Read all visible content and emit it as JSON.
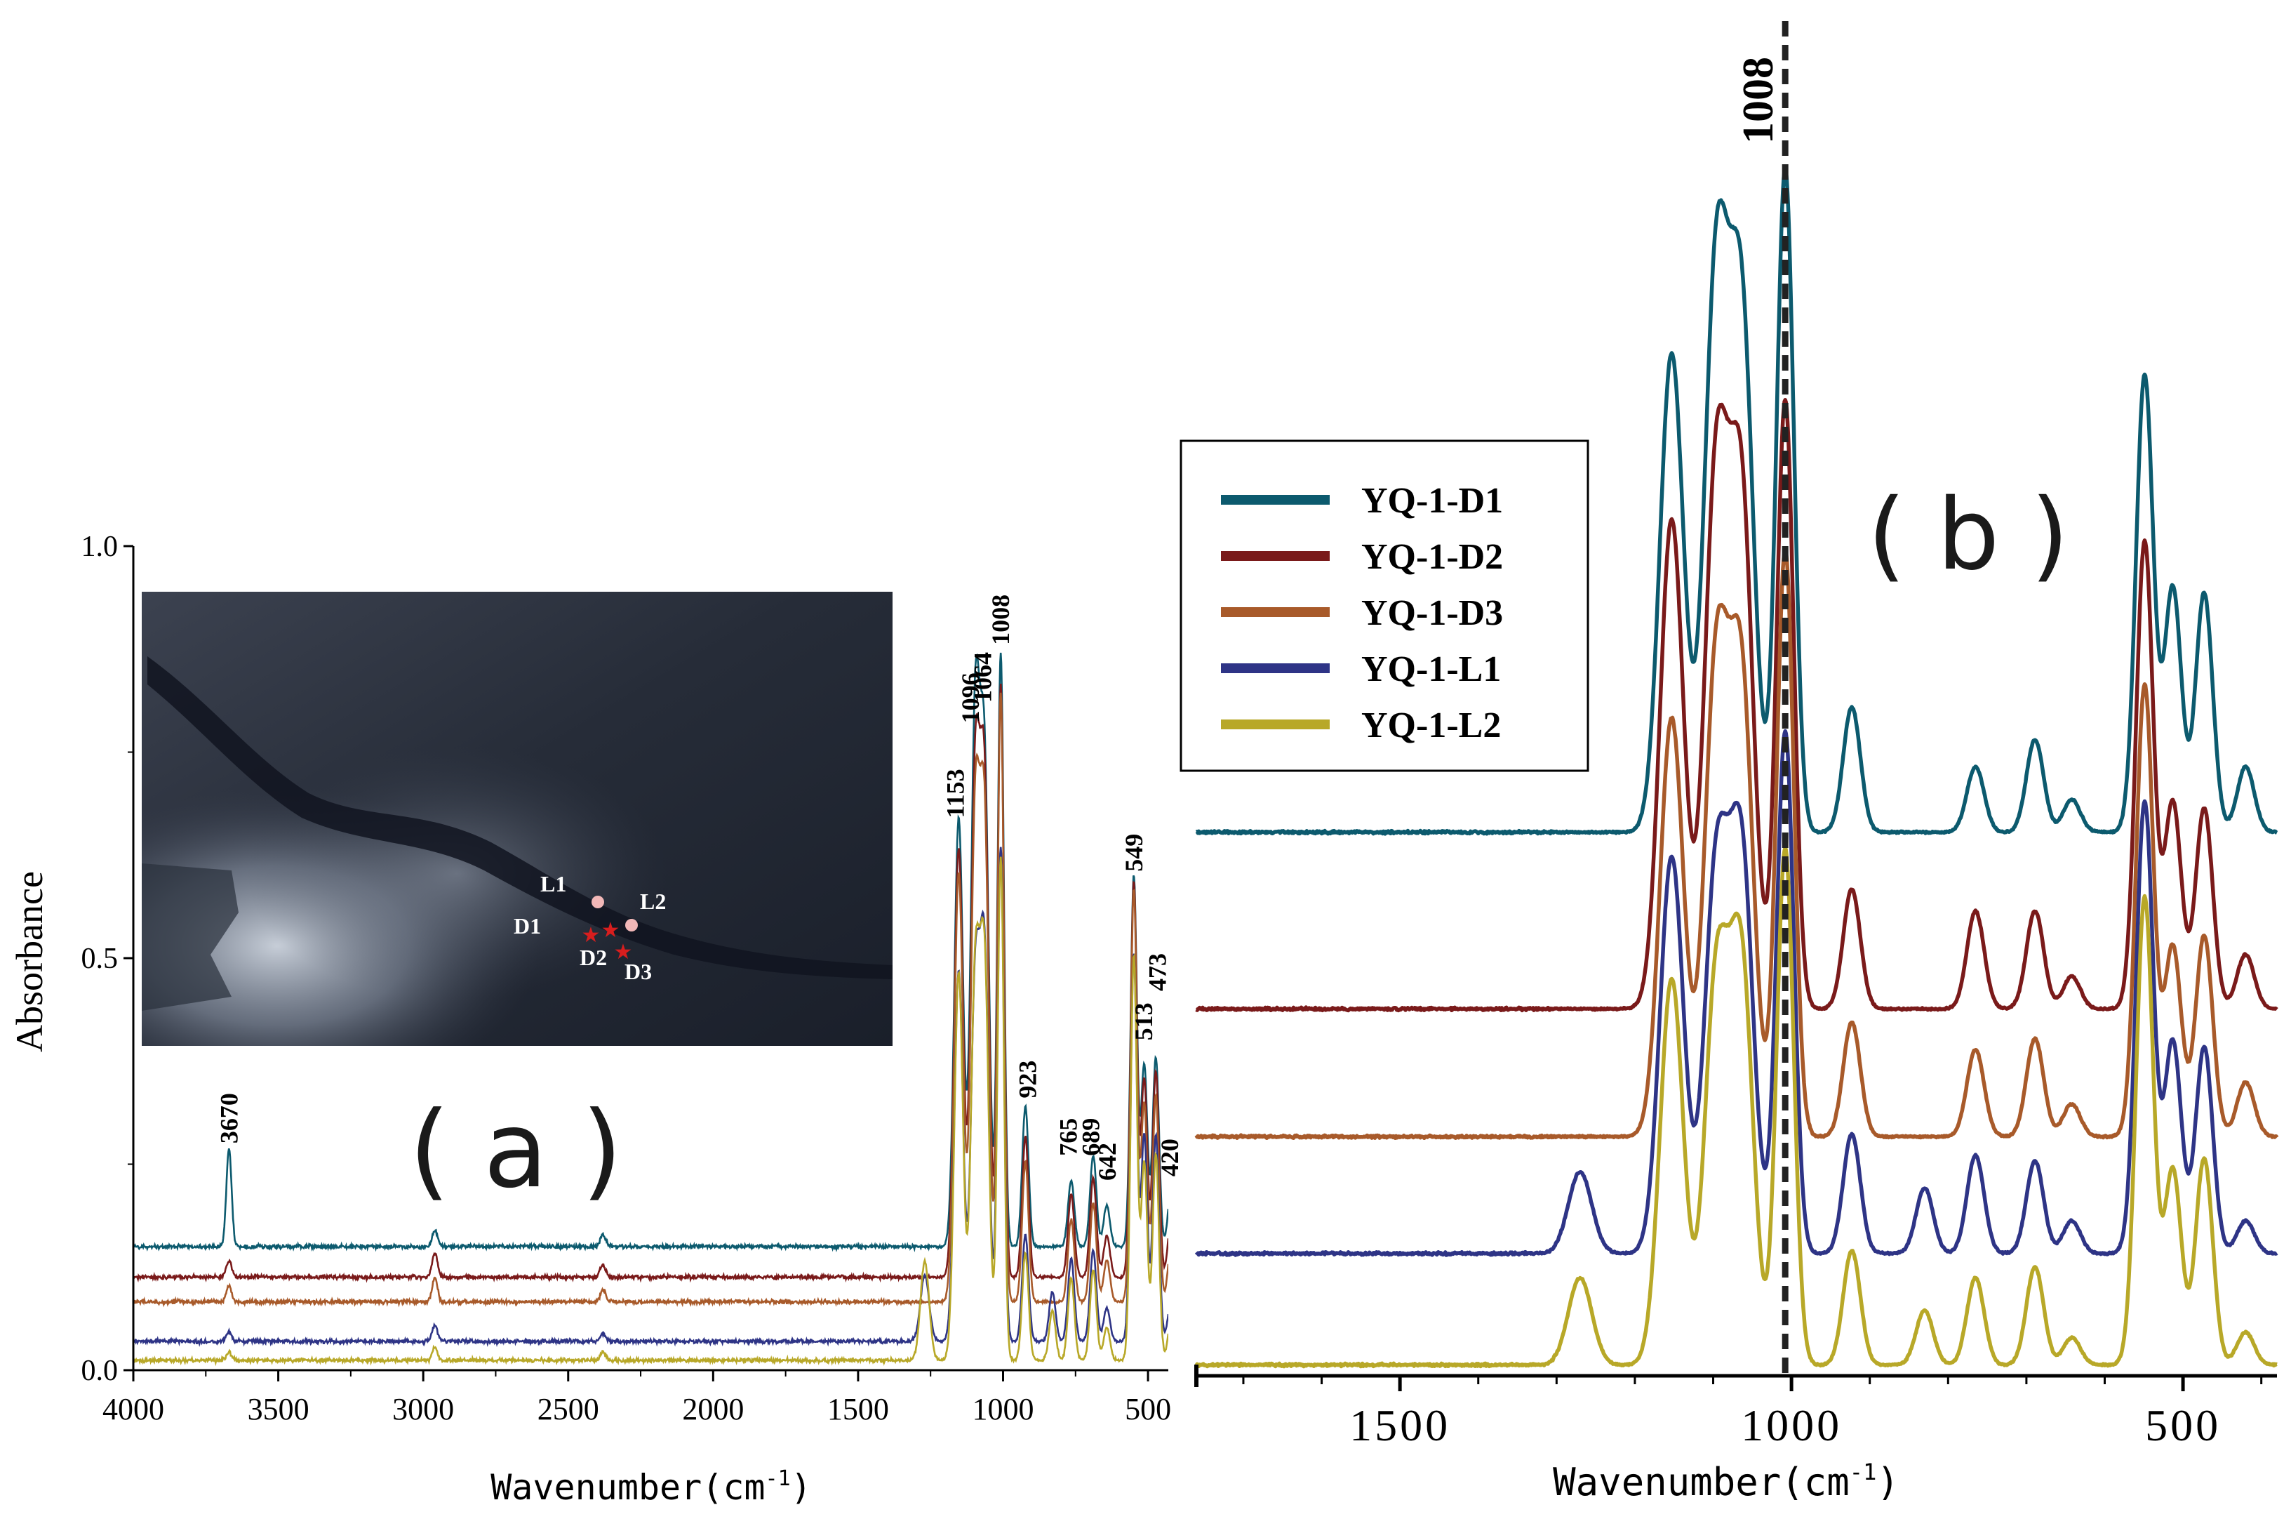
{
  "figure": {
    "panel_a_label": "( a )",
    "panel_b_label": "( b )"
  },
  "inset": {
    "description_labels": [
      {
        "text": "L1",
        "kind": "circle"
      },
      {
        "text": "L2",
        "kind": "circle"
      },
      {
        "text": "D1",
        "kind": "star"
      },
      {
        "text": "D2",
        "kind": "star"
      },
      {
        "text": "D3",
        "kind": "star"
      }
    ]
  },
  "chart_data": [
    {
      "panel": "a",
      "type": "line",
      "title": "",
      "xlabel": "Wavenumber(cm",
      "xlabel_sup": "-1",
      "xlabel_close": ")",
      "ylabel": "Absorbance",
      "xlim": [
        4000,
        430
      ],
      "ylim": [
        0.0,
        1.0
      ],
      "xticks": [
        4000,
        3500,
        3000,
        2500,
        2000,
        1500,
        1000,
        500
      ],
      "yticks": [
        0.0,
        0.5,
        1.0
      ],
      "ytick_labels": [
        "0.0",
        "0.5",
        "1.0"
      ],
      "peak_labels": [
        "3670",
        "1153",
        "1096",
        "1064",
        "1008",
        "923",
        "765",
        "689",
        "642",
        "549",
        "513",
        "473",
        "420"
      ],
      "series": [
        {
          "name": "YQ-1-D1",
          "color": "#0c5a6e",
          "baseline": 0.15,
          "peaks": [
            [
              3670,
              0.12
            ],
            [
              2960,
              0.02
            ],
            [
              2380,
              0.015
            ],
            [
              1153,
              0.52
            ],
            [
              1096,
              0.64
            ],
            [
              1064,
              0.57
            ],
            [
              1008,
              0.72
            ],
            [
              923,
              0.17
            ],
            [
              765,
              0.08
            ],
            [
              689,
              0.11
            ],
            [
              642,
              0.05
            ],
            [
              549,
              0.45
            ],
            [
              513,
              0.22
            ],
            [
              473,
              0.23
            ],
            [
              420,
              0.07
            ]
          ]
        },
        {
          "name": "YQ-1-D2",
          "color": "#7a1a1a",
          "baseline": 0.113,
          "peaks": [
            [
              3670,
              0.02
            ],
            [
              2960,
              0.03
            ],
            [
              2380,
              0.015
            ],
            [
              1153,
              0.52
            ],
            [
              1096,
              0.6
            ],
            [
              1064,
              0.58
            ],
            [
              1008,
              0.72
            ],
            [
              923,
              0.17
            ],
            [
              765,
              0.1
            ],
            [
              689,
              0.12
            ],
            [
              642,
              0.05
            ],
            [
              549,
              0.48
            ],
            [
              513,
              0.24
            ],
            [
              473,
              0.25
            ],
            [
              420,
              0.07
            ]
          ]
        },
        {
          "name": "YQ-1-D3",
          "color": "#a85a2a",
          "baseline": 0.083,
          "peaks": [
            [
              3670,
              0.02
            ],
            [
              2960,
              0.03
            ],
            [
              2380,
              0.015
            ],
            [
              1153,
              0.52
            ],
            [
              1096,
              0.58
            ],
            [
              1064,
              0.57
            ],
            [
              1008,
              0.74
            ],
            [
              923,
              0.17
            ],
            [
              765,
              0.1
            ],
            [
              689,
              0.12
            ],
            [
              642,
              0.05
            ],
            [
              549,
              0.5
            ],
            [
              513,
              0.24
            ],
            [
              473,
              0.25
            ],
            [
              420,
              0.07
            ]
          ]
        },
        {
          "name": "YQ-1-L1",
          "color": "#2e3486",
          "baseline": 0.035,
          "peaks": [
            [
              3670,
              0.012
            ],
            [
              2960,
              0.02
            ],
            [
              2380,
              0.01
            ],
            [
              1270,
              0.08
            ],
            [
              1153,
              0.45
            ],
            [
              1096,
              0.43
            ],
            [
              1064,
              0.46
            ],
            [
              1008,
              0.6
            ],
            [
              923,
              0.13
            ],
            [
              830,
              0.06
            ],
            [
              765,
              0.1
            ],
            [
              689,
              0.11
            ],
            [
              642,
              0.04
            ],
            [
              549,
              0.47
            ],
            [
              513,
              0.25
            ],
            [
              473,
              0.25
            ],
            [
              420,
              0.05
            ]
          ]
        },
        {
          "name": "YQ-1-L2",
          "color": "#b8a828",
          "baseline": 0.012,
          "peaks": [
            [
              3670,
              0.01
            ],
            [
              2960,
              0.015
            ],
            [
              2380,
              0.01
            ],
            [
              1270,
              0.12
            ],
            [
              1153,
              0.47
            ],
            [
              1096,
              0.46
            ],
            [
              1064,
              0.47
            ],
            [
              1008,
              0.61
            ],
            [
              923,
              0.13
            ],
            [
              830,
              0.06
            ],
            [
              765,
              0.1
            ],
            [
              689,
              0.11
            ],
            [
              642,
              0.04
            ],
            [
              549,
              0.49
            ],
            [
              513,
              0.24
            ],
            [
              473,
              0.25
            ],
            [
              420,
              0.05
            ]
          ]
        }
      ]
    },
    {
      "panel": "b",
      "type": "line",
      "title": "",
      "xlabel": "Wavenumber(cm",
      "xlabel_sup": "-1",
      "xlabel_close": ")",
      "ylabel": "",
      "xlim": [
        1760,
        380
      ],
      "xticks": [
        1500,
        1000,
        500
      ],
      "reference_line": {
        "x": 1008,
        "label": "1008",
        "style": "dashed"
      },
      "legend": {
        "placement": "top-left",
        "entries": [
          "YQ-1-D1",
          "YQ-1-D2",
          "YQ-1-D3",
          "YQ-1-L1",
          "YQ-1-L2"
        ]
      },
      "series": [
        {
          "name": "YQ-1-D1",
          "color": "#0c5a6e",
          "baseline": 1.0,
          "peaks": [
            [
              1153,
              0.88
            ],
            [
              1096,
              1.03
            ],
            [
              1064,
              0.95
            ],
            [
              1008,
              1.22
            ],
            [
              923,
              0.23
            ],
            [
              765,
              0.12
            ],
            [
              689,
              0.17
            ],
            [
              642,
              0.06
            ],
            [
              549,
              0.84
            ],
            [
              513,
              0.45
            ],
            [
              473,
              0.44
            ],
            [
              420,
              0.12
            ]
          ]
        },
        {
          "name": "YQ-1-D2",
          "color": "#7a1a1a",
          "baseline": 0.675,
          "peaks": [
            [
              1153,
              0.9
            ],
            [
              1096,
              0.98
            ],
            [
              1064,
              0.93
            ],
            [
              1008,
              1.12
            ],
            [
              923,
              0.22
            ],
            [
              765,
              0.18
            ],
            [
              689,
              0.18
            ],
            [
              642,
              0.06
            ],
            [
              549,
              0.86
            ],
            [
              513,
              0.38
            ],
            [
              473,
              0.37
            ],
            [
              420,
              0.1
            ]
          ]
        },
        {
          "name": "YQ-1-D3",
          "color": "#a85a2a",
          "baseline": 0.44,
          "peaks": [
            [
              1153,
              0.77
            ],
            [
              1096,
              0.86
            ],
            [
              1064,
              0.83
            ],
            [
              1008,
              1.08
            ],
            [
              923,
              0.21
            ],
            [
              765,
              0.16
            ],
            [
              689,
              0.18
            ],
            [
              642,
              0.06
            ],
            [
              549,
              0.83
            ],
            [
              513,
              0.35
            ],
            [
              473,
              0.37
            ],
            [
              420,
              0.1
            ]
          ]
        },
        {
          "name": "YQ-1-L1",
          "color": "#2e3486",
          "baseline": 0.225,
          "peaks": [
            [
              1270,
              0.15
            ],
            [
              1153,
              0.73
            ],
            [
              1096,
              0.7
            ],
            [
              1064,
              0.73
            ],
            [
              1008,
              0.96
            ],
            [
              923,
              0.22
            ],
            [
              830,
              0.12
            ],
            [
              765,
              0.18
            ],
            [
              689,
              0.17
            ],
            [
              642,
              0.06
            ],
            [
              549,
              0.83
            ],
            [
              513,
              0.39
            ],
            [
              473,
              0.38
            ],
            [
              420,
              0.06
            ]
          ]
        },
        {
          "name": "YQ-1-L2",
          "color": "#b8a828",
          "baseline": 0.02,
          "peaks": [
            [
              1270,
              0.16
            ],
            [
              1153,
              0.71
            ],
            [
              1096,
              0.7
            ],
            [
              1064,
              0.73
            ],
            [
              1008,
              0.95
            ],
            [
              923,
              0.21
            ],
            [
              830,
              0.1
            ],
            [
              765,
              0.16
            ],
            [
              689,
              0.18
            ],
            [
              642,
              0.05
            ],
            [
              549,
              0.86
            ],
            [
              513,
              0.36
            ],
            [
              473,
              0.38
            ],
            [
              420,
              0.06
            ]
          ]
        }
      ]
    }
  ]
}
